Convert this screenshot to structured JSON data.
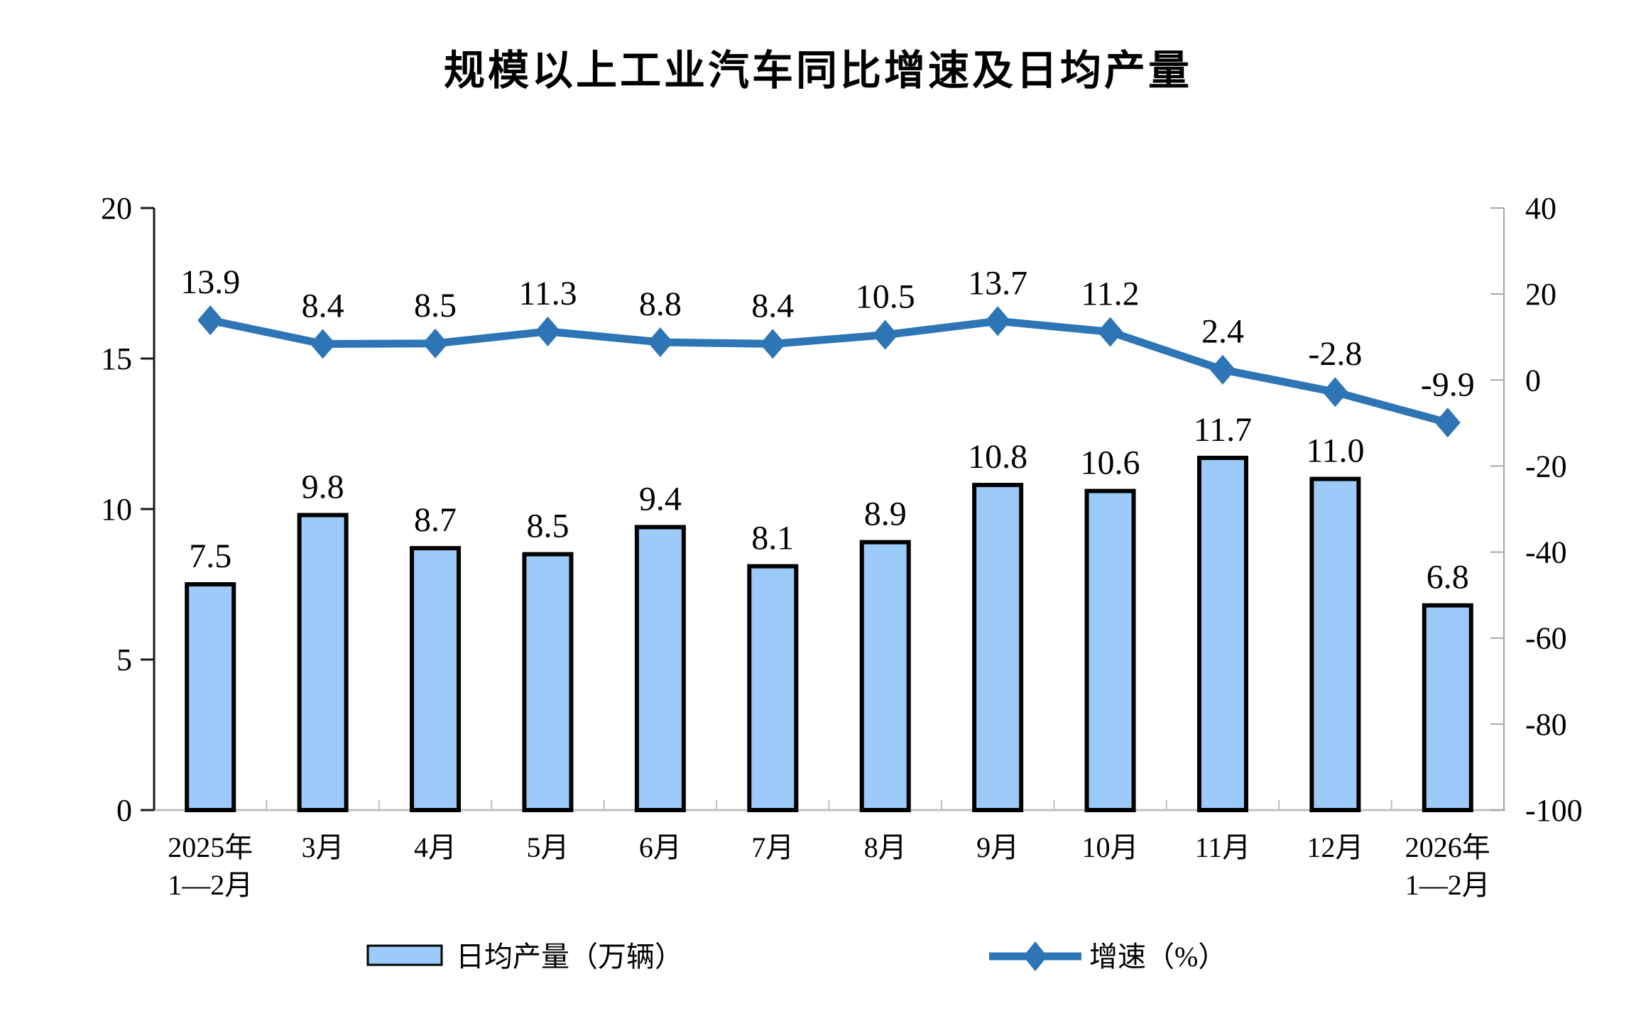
{
  "title": "规模以上工业汽车同比增速及日均产量",
  "colors": {
    "bar_fill": "#9CCBFA",
    "bar_border": "#000000",
    "line_blue": "#2E75B6",
    "left_axis": "#1A1A1A",
    "right_axis": "#A6A6A6",
    "baseline_gray": "#BFBFBF",
    "background": "#FFFFFF",
    "text": "#000000"
  },
  "chart_data": {
    "type": "combo_bar_line",
    "title": "规模以上工业汽车同比增速及日均产量",
    "categories": [
      "2025年\n1—2月",
      "3月",
      "4月",
      "5月",
      "6月",
      "7月",
      "8月",
      "9月",
      "10月",
      "11月",
      "12月",
      "2026年\n1—2月"
    ],
    "series": [
      {
        "name": "日均产量（万辆）",
        "type": "bar",
        "axis": "left",
        "values": [
          7.5,
          9.8,
          8.7,
          8.5,
          9.4,
          8.1,
          8.9,
          10.8,
          10.6,
          11.7,
          11.0,
          6.8
        ],
        "labels": [
          "7.5",
          "9.8",
          "8.7",
          "8.5",
          "9.4",
          "8.1",
          "8.9",
          "10.8",
          "10.6",
          "11.7",
          "11.0",
          "6.8"
        ]
      },
      {
        "name": "增速（%）",
        "type": "line",
        "axis": "right",
        "values": [
          13.9,
          8.4,
          8.5,
          11.3,
          8.8,
          8.4,
          10.5,
          13.7,
          11.2,
          2.4,
          -2.8,
          -9.9
        ],
        "labels": [
          "13.9",
          "8.4",
          "8.5",
          "11.3",
          "8.8",
          "8.4",
          "10.5",
          "13.7",
          "11.2",
          "2.4",
          "-2.8",
          "-9.9"
        ]
      }
    ],
    "left_axis": {
      "min": 0,
      "max": 20,
      "ticks": [
        20,
        15,
        10,
        5,
        0
      ],
      "tick_labels": [
        "20",
        "15",
        "10",
        "5",
        "0"
      ]
    },
    "right_axis": {
      "min": -100,
      "max": 40,
      "ticks": [
        40,
        20,
        0,
        -20,
        -40,
        -60,
        -80,
        -100
      ],
      "tick_labels": [
        "40",
        "20",
        "0",
        "-20",
        "-40",
        "-60",
        "-80",
        "-100"
      ]
    },
    "legend": [
      "日均产量（万辆）",
      "增速（%）"
    ],
    "legend_position": "bottom",
    "grid": false
  }
}
